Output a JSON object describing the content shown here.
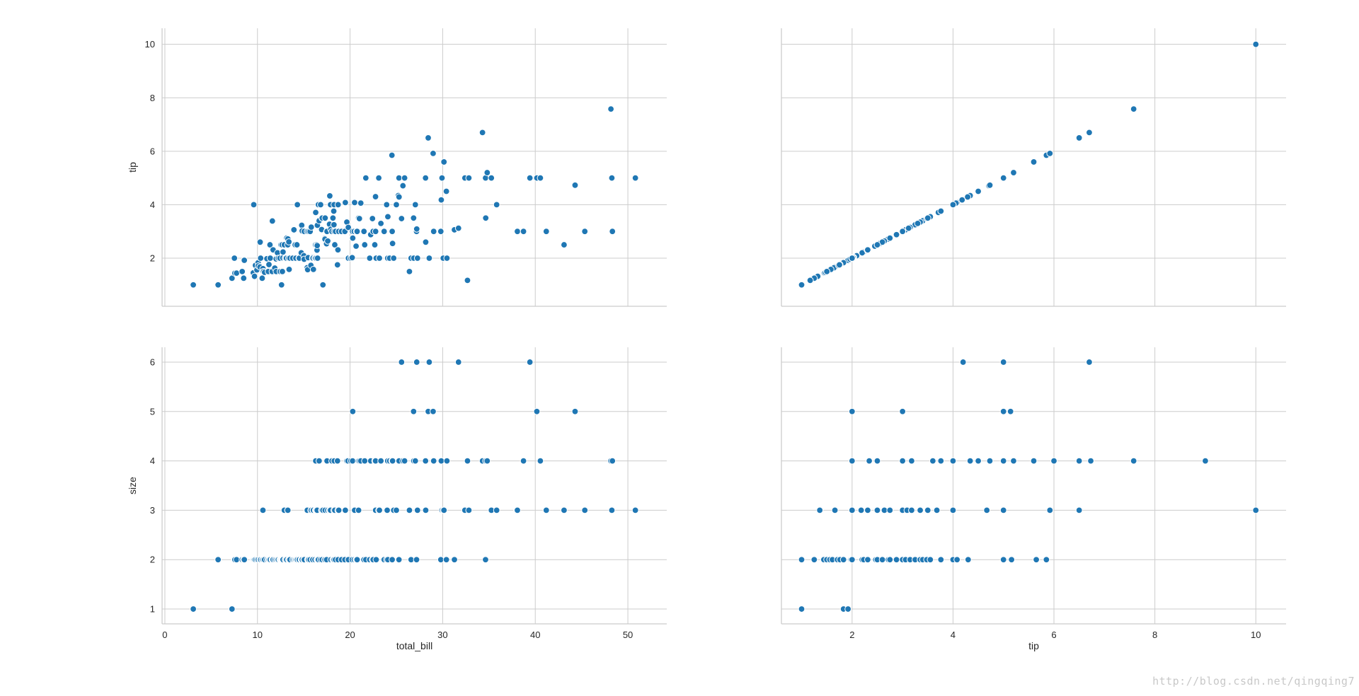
{
  "watermark": "http://blog.csdn.net/qingqing7",
  "colors": {
    "point": "#1f77b4",
    "grid": "#cccccc",
    "spine": "#cccccc",
    "text": "#262626"
  },
  "chart_data": {
    "type": "scatter",
    "layout": "pairgrid",
    "grid": true,
    "columns": [
      "total_bill",
      "tip"
    ],
    "rows": [
      "tip",
      "size"
    ],
    "axes": {
      "total_bill": {
        "label": "total_bill",
        "ticks": [
          0,
          10,
          20,
          30,
          40,
          50
        ],
        "lim": [
          -0.3,
          54.2
        ]
      },
      "tip": {
        "label": "tip",
        "ticks": [
          2,
          4,
          6,
          8,
          10
        ],
        "lim": [
          0.6,
          10.6
        ]
      },
      "tip_y": {
        "label": "tip",
        "ticks": [
          2,
          4,
          6,
          8,
          10
        ],
        "lim": [
          0.2,
          10.6
        ]
      },
      "size": {
        "label": "size",
        "ticks": [
          1,
          2,
          3,
          4,
          5,
          6
        ],
        "lim": [
          0.7,
          6.3
        ]
      }
    },
    "data": {
      "total_bill": [
        3.07,
        5.75,
        7.25,
        7.51,
        7.56,
        7.74,
        8.35,
        8.51,
        8.58,
        9.55,
        9.6,
        9.68,
        9.78,
        9.94,
        10.07,
        10.09,
        10.27,
        10.29,
        10.33,
        10.34,
        10.51,
        10.59,
        10.63,
        10.65,
        10.77,
        11.02,
        11.17,
        11.24,
        11.35,
        11.38,
        11.59,
        11.61,
        11.69,
        11.87,
        12.02,
        12.03,
        12.16,
        12.26,
        12.43,
        12.46,
        12.54,
        12.6,
        12.66,
        12.69,
        12.74,
        12.76,
        12.9,
        13.0,
        13.03,
        13.13,
        13.16,
        13.27,
        13.28,
        13.37,
        13.39,
        13.42,
        13.51,
        13.81,
        13.94,
        14.07,
        14.15,
        14.26,
        14.31,
        14.48,
        14.52,
        14.73,
        14.78,
        14.83,
        15.01,
        15.04,
        15.06,
        15.36,
        15.38,
        15.42,
        15.48,
        15.53,
        15.69,
        15.77,
        15.81,
        15.95,
        15.98,
        16.0,
        16.04,
        16.21,
        16.27,
        16.29,
        16.31,
        16.32,
        16.4,
        16.43,
        16.45,
        16.47,
        16.49,
        16.58,
        16.66,
        16.82,
        16.93,
        16.97,
        16.99,
        17.07,
        17.26,
        17.29,
        17.31,
        17.46,
        17.47,
        17.51,
        17.59,
        17.78,
        17.81,
        17.89,
        17.92,
        18.04,
        18.15,
        18.24,
        18.26,
        18.28,
        18.29,
        18.35,
        18.43,
        18.64,
        18.69,
        18.71,
        18.78,
        19.08,
        19.44,
        19.49,
        19.65,
        19.77,
        19.81,
        19.82,
        20.08,
        20.23,
        20.27,
        20.29,
        20.45,
        20.49,
        20.65,
        20.69,
        20.76,
        20.9,
        20.92,
        21.01,
        21.16,
        21.5,
        21.58,
        21.7,
        22.12,
        22.23,
        22.42,
        22.49,
        22.67,
        22.75,
        22.76,
        22.82,
        23.1,
        23.17,
        23.33,
        23.68,
        23.95,
        24.01,
        24.06,
        24.08,
        24.27,
        24.52,
        24.55,
        24.59,
        24.71,
        25.0,
        25.21,
        25.28,
        25.29,
        25.56,
        25.71,
        25.89,
        26.41,
        26.59,
        26.86,
        26.88,
        27.05,
        27.18,
        27.2,
        27.28,
        28.15,
        28.17,
        28.44,
        28.55,
        28.97,
        29.03,
        29.8,
        29.85,
        29.93,
        30.06,
        30.14,
        30.4,
        30.46,
        31.27,
        31.71,
        32.4,
        32.68,
        32.83,
        34.3,
        34.63,
        34.65,
        34.81,
        35.26,
        35.83,
        38.01,
        38.07,
        38.73,
        39.42,
        40.17,
        40.55,
        41.19,
        43.11,
        44.3,
        45.35,
        48.17,
        48.27,
        48.33,
        50.81
      ],
      "tip": [
        1.0,
        1.0,
        1.25,
        2.0,
        1.44,
        1.44,
        1.5,
        1.25,
        1.92,
        1.45,
        4.0,
        1.32,
        1.73,
        1.56,
        1.83,
        1.71,
        1.67,
        2.6,
        2.0,
        2.0,
        1.25,
        1.61,
        1.5,
        1.5,
        1.47,
        1.98,
        1.5,
        1.76,
        2.5,
        2.0,
        1.5,
        3.39,
        2.31,
        1.63,
        1.97,
        1.5,
        2.2,
        2.0,
        2.0,
        1.5,
        2.5,
        1.0,
        2.5,
        1.5,
        2.01,
        2.23,
        2.5,
        2.0,
        2.0,
        2.0,
        2.75,
        2.5,
        2.72,
        2.0,
        2.61,
        1.58,
        2.0,
        2.0,
        3.06,
        2.5,
        2.0,
        2.5,
        4.0,
        2.0,
        2.0,
        2.2,
        3.23,
        3.02,
        2.09,
        1.96,
        3.0,
        1.64,
        3.0,
        1.57,
        2.02,
        3.0,
        3.0,
        1.73,
        3.16,
        2.0,
        2.03,
        2.0,
        1.58,
        2.0,
        2.5,
        3.71,
        2.0,
        2.0,
        2.5,
        2.3,
        2.47,
        3.23,
        2.0,
        4.0,
        3.4,
        4.0,
        3.07,
        3.5,
        3.5,
        1.0,
        2.74,
        2.71,
        3.5,
        2.54,
        3.0,
        3.0,
        2.64,
        3.27,
        4.33,
        4.0,
        3.08,
        3.0,
        3.5,
        3.76,
        3.25,
        4.0,
        3.0,
        2.5,
        3.0,
        1.75,
        2.31,
        4.0,
        3.0,
        3.0,
        3.0,
        4.08,
        3.35,
        2.0,
        3.15,
        2.0,
        2.0,
        2.02,
        3.0,
        2.75,
        3.0,
        4.08,
        2.45,
        3.0,
        3.0,
        3.5,
        3.5,
        3.48,
        4.06,
        3.0,
        2.5,
        5.0,
        2.0,
        2.88,
        3.48,
        3.0,
        2.5,
        4.3,
        3.0,
        2.0,
        5.0,
        2.0,
        3.3,
        3.0,
        4.0,
        2.0,
        2.0,
        3.55,
        2.0,
        5.85,
        3.0,
        2.55,
        2.0,
        4.0,
        4.34,
        5.0,
        4.29,
        3.48,
        4.71,
        5.0,
        1.5,
        2.0,
        3.5,
        2.0,
        4.0,
        3.0,
        3.09,
        2.0,
        5.0,
        2.6,
        6.5,
        2.0,
        5.92,
        3.0,
        3.0,
        4.18,
        5.0,
        2.0,
        5.6,
        4.5,
        2.0,
        3.06,
        3.12,
        5.0,
        1.17,
        5.0,
        6.7,
        5.0,
        3.5,
        5.2,
        5.0,
        4.0,
        3.0,
        3.0,
        3.0,
        5.0,
        5.0,
        5.0,
        3.0,
        2.5,
        4.73,
        3.0,
        7.58,
        5.0,
        3.0,
        5.0,
        3.0,
        5.0,
        5.0,
        5.0,
        6.5,
        10.0
      ],
      "size": [
        1,
        2,
        1,
        2,
        2,
        2,
        2,
        2,
        2,
        2,
        2,
        2,
        2,
        2,
        2,
        2,
        2,
        2,
        2,
        2,
        2,
        3,
        2,
        2,
        2,
        2,
        2,
        2,
        2,
        2,
        2,
        2,
        2,
        2,
        2,
        2,
        2,
        2,
        2,
        2,
        2,
        2,
        2,
        2,
        2,
        2,
        3,
        2,
        2,
        2,
        2,
        3,
        3,
        2,
        2,
        2,
        2,
        2,
        2,
        2,
        2,
        2,
        2,
        2,
        2,
        2,
        2,
        2,
        2,
        2,
        2,
        3,
        3,
        2,
        2,
        2,
        2,
        3,
        3,
        2,
        2,
        3,
        3,
        2,
        3,
        4,
        3,
        3,
        3,
        2,
        3,
        2,
        2,
        2,
        4,
        2,
        3,
        3,
        2,
        3,
        2,
        2,
        3,
        2,
        2,
        4,
        3,
        3,
        3,
        3,
        2,
        4,
        2,
        2,
        3,
        2,
        4,
        3,
        2,
        4,
        3,
        2,
        3,
        2,
        2,
        3,
        4,
        4,
        2,
        2,
        4,
        2,
        4,
        5,
        2,
        3,
        2,
        2,
        2,
        4,
        3,
        4,
        4,
        2,
        4,
        2,
        2,
        4,
        2,
        2,
        4,
        4,
        3,
        2,
        3,
        3,
        4,
        2,
        2,
        3,
        4,
        2,
        4,
        4,
        2,
        4,
        3,
        3,
        2,
        2,
        4,
        6,
        4,
        4,
        3,
        2,
        5,
        4,
        4,
        2,
        6,
        3,
        4,
        3,
        5,
        6,
        5,
        4,
        2,
        4,
        3,
        3,
        3,
        2,
        4,
        2,
        6,
        3,
        4,
        3,
        4,
        2,
        4,
        4,
        3,
        3,
        3,
        3,
        4,
        6,
        5,
        4,
        3,
        3,
        5,
        3,
        4,
        3,
        4,
        3,
        6,
        2,
        5,
        3,
        2,
        4,
        3,
        6,
        4,
        3
      ],
      "size_points": [
        [
          1.0,
          1
        ],
        [
          1.83,
          1
        ],
        [
          1.92,
          1
        ],
        [
          1.0,
          2
        ],
        [
          1.25,
          2
        ],
        [
          1.44,
          2
        ],
        [
          1.5,
          2
        ],
        [
          1.56,
          2
        ],
        [
          1.61,
          2
        ],
        [
          1.71,
          2
        ],
        [
          1.76,
          2
        ],
        [
          1.83,
          2
        ],
        [
          1.98,
          2
        ],
        [
          2.0,
          2
        ],
        [
          2.2,
          2
        ],
        [
          2.23,
          2
        ],
        [
          2.31,
          2
        ],
        [
          2.47,
          2
        ],
        [
          2.5,
          2
        ],
        [
          2.6,
          2
        ],
        [
          2.72,
          2
        ],
        [
          2.75,
          2
        ],
        [
          2.88,
          2
        ],
        [
          3.0,
          2
        ],
        [
          3.06,
          2
        ],
        [
          3.15,
          2
        ],
        [
          3.25,
          2
        ],
        [
          3.35,
          2
        ],
        [
          3.4,
          2
        ],
        [
          3.48,
          2
        ],
        [
          3.55,
          2
        ],
        [
          3.76,
          2
        ],
        [
          4.0,
          2
        ],
        [
          4.08,
          2
        ],
        [
          4.3,
          2
        ],
        [
          5.0,
          2
        ],
        [
          5.16,
          2
        ],
        [
          5.65,
          2
        ],
        [
          5.85,
          2
        ],
        [
          1.36,
          3
        ],
        [
          1.66,
          3
        ],
        [
          2.0,
          3
        ],
        [
          2.18,
          3
        ],
        [
          2.31,
          3
        ],
        [
          2.5,
          3
        ],
        [
          2.64,
          3
        ],
        [
          2.75,
          3
        ],
        [
          3.0,
          3
        ],
        [
          3.09,
          3
        ],
        [
          3.18,
          3
        ],
        [
          3.35,
          3
        ],
        [
          3.5,
          3
        ],
        [
          3.68,
          3
        ],
        [
          4.0,
          3
        ],
        [
          4.67,
          3
        ],
        [
          5.0,
          3
        ],
        [
          5.92,
          3
        ],
        [
          6.5,
          3
        ],
        [
          10.0,
          3
        ],
        [
          2.0,
          4
        ],
        [
          2.34,
          4
        ],
        [
          2.5,
          4
        ],
        [
          3.0,
          4
        ],
        [
          3.18,
          4
        ],
        [
          3.6,
          4
        ],
        [
          3.76,
          4
        ],
        [
          4.0,
          4
        ],
        [
          4.34,
          4
        ],
        [
          4.5,
          4
        ],
        [
          4.73,
          4
        ],
        [
          5.0,
          4
        ],
        [
          5.2,
          4
        ],
        [
          5.6,
          4
        ],
        [
          6.0,
          4
        ],
        [
          6.5,
          4
        ],
        [
          6.73,
          4
        ],
        [
          7.58,
          4
        ],
        [
          9.0,
          4
        ],
        [
          2.0,
          5
        ],
        [
          3.0,
          5
        ],
        [
          5.0,
          5
        ],
        [
          5.14,
          5
        ],
        [
          4.2,
          6
        ],
        [
          5.0,
          6
        ],
        [
          6.7,
          6
        ]
      ]
    }
  }
}
